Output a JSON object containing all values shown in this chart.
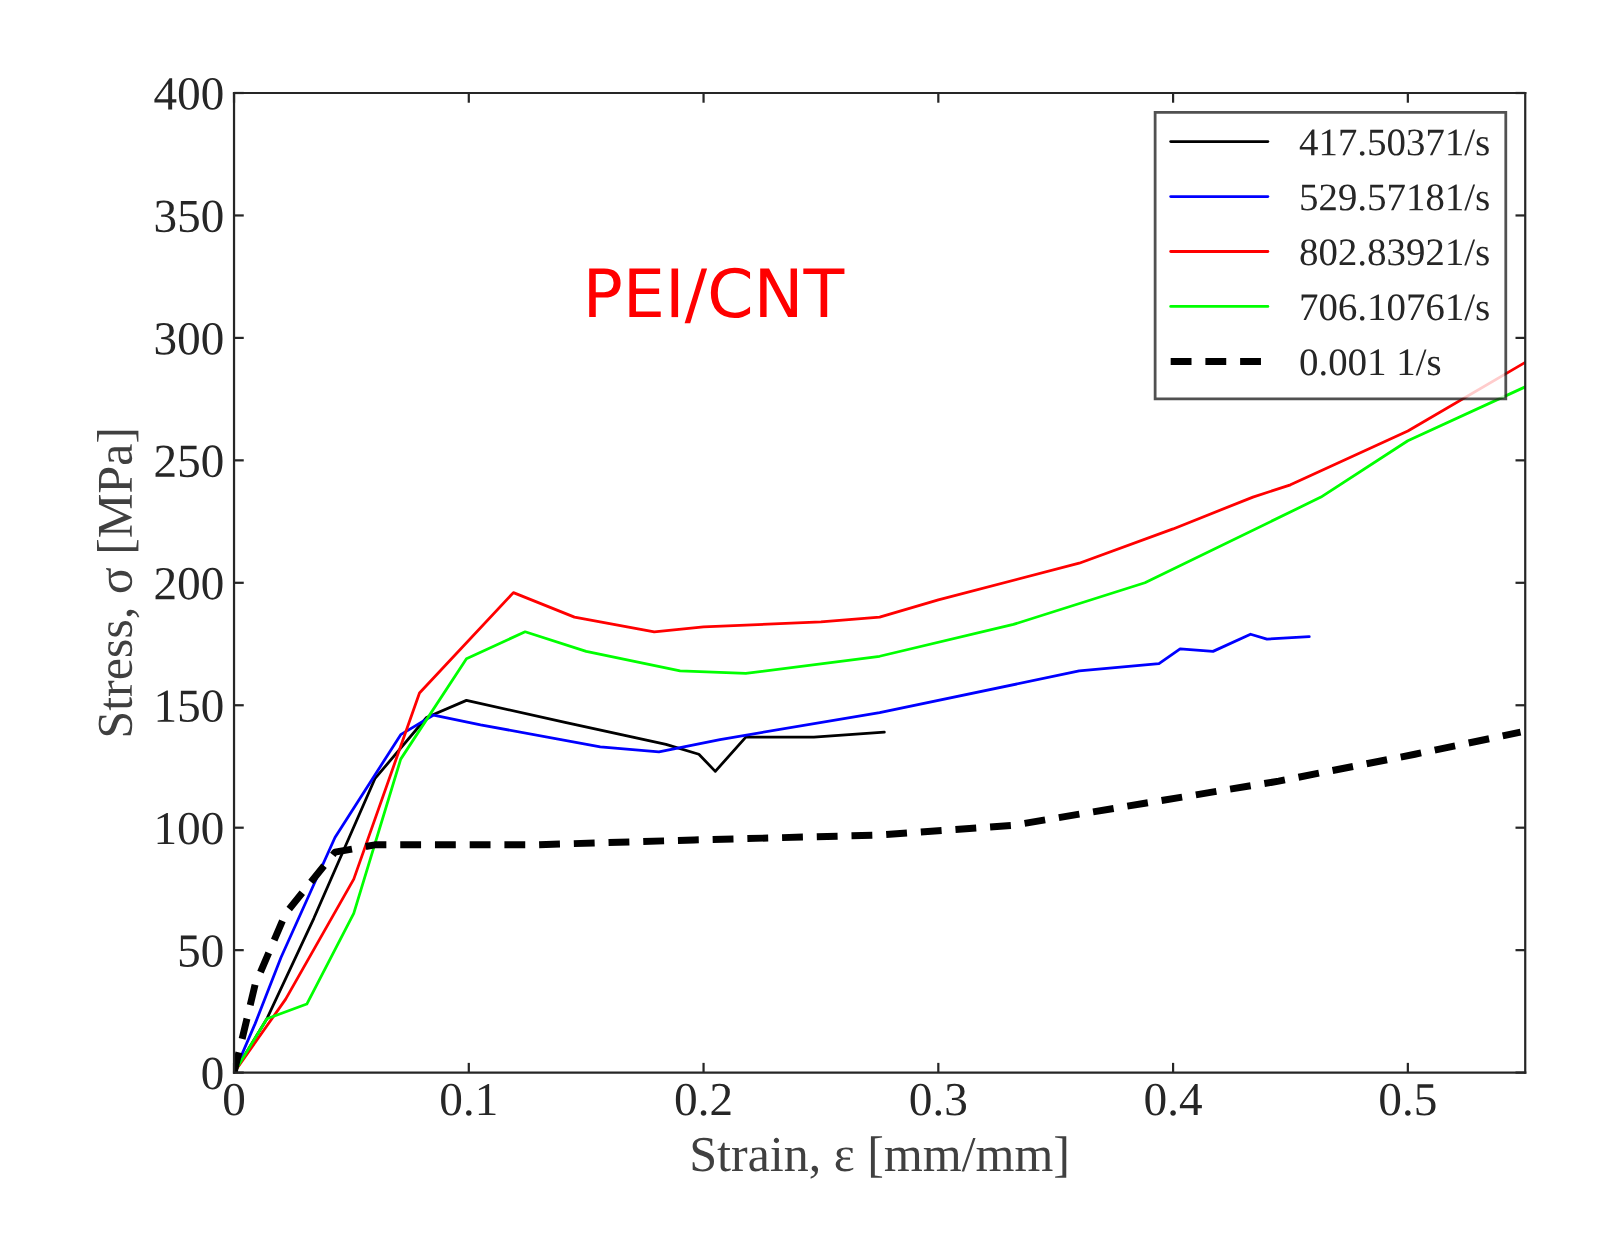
{
  "chart_data": {
    "type": "line",
    "xlabel": "Strain, ε [mm/mm]",
    "ylabel": "Stress, σ [MPa]",
    "xlim": [
      0,
      0.55
    ],
    "xticks": [
      0,
      0.1,
      0.2,
      0.3,
      0.4,
      0.5
    ],
    "ylim": [
      0,
      400
    ],
    "yticks": [
      0,
      50,
      100,
      150,
      200,
      250,
      300,
      350,
      400
    ],
    "grid": false,
    "legend": "top right",
    "annotations": [
      "PEI/CNT"
    ],
    "series": [
      {
        "name": "417.50371/s",
        "color": "#000000",
        "line_style": "solid",
        "x": [
          0,
          0.014,
          0.034,
          0.06,
          0.082,
          0.099,
          0.141,
          0.184,
          0.198,
          0.205,
          0.218,
          0.247,
          0.277
        ],
        "values": [
          0,
          22,
          63,
          120,
          145,
          152,
          143,
          134,
          130,
          123,
          137,
          137,
          139
        ]
      },
      {
        "name": "529.57181/s",
        "color": "#0000ff",
        "line_style": "solid",
        "x": [
          0,
          0.009,
          0.02,
          0.043,
          0.071,
          0.085,
          0.105,
          0.156,
          0.181,
          0.207,
          0.275,
          0.36,
          0.394,
          0.403,
          0.417,
          0.433,
          0.44,
          0.458
        ],
        "values": [
          0,
          20,
          47,
          96,
          138,
          146,
          142,
          133,
          131,
          136,
          147,
          164,
          167,
          173,
          172,
          179,
          177,
          178
        ]
      },
      {
        "name": "802.83921/s",
        "color": "#ff0000",
        "line_style": "solid",
        "x": [
          0,
          0.022,
          0.051,
          0.079,
          0.119,
          0.145,
          0.179,
          0.2,
          0.25,
          0.275,
          0.3,
          0.36,
          0.4,
          0.434,
          0.45,
          0.5,
          0.55
        ],
        "values": [
          0,
          30,
          79,
          155,
          196,
          186,
          180,
          182,
          184,
          186,
          193,
          208,
          222,
          235,
          240,
          262,
          290
        ]
      },
      {
        "name": "706.10761/s",
        "color": "#00ff00",
        "line_style": "solid",
        "x": [
          0,
          0.014,
          0.031,
          0.051,
          0.071,
          0.099,
          0.124,
          0.15,
          0.19,
          0.218,
          0.275,
          0.332,
          0.388,
          0.463,
          0.5,
          0.55
        ],
        "values": [
          0,
          22,
          28,
          65,
          128,
          169,
          180,
          172,
          164,
          163,
          170,
          183,
          200,
          235,
          258,
          280
        ]
      },
      {
        "name": "0.001 1/s",
        "color": "#000000",
        "line_style": "dashed",
        "x": [
          0,
          0.009,
          0.022,
          0.043,
          0.06,
          0.128,
          0.196,
          0.275,
          0.332,
          0.388,
          0.445,
          0.503,
          0.548
        ],
        "values": [
          0,
          36,
          65,
          90,
          93,
          93,
          95,
          97,
          101,
          110,
          119,
          130,
          139
        ]
      }
    ]
  }
}
